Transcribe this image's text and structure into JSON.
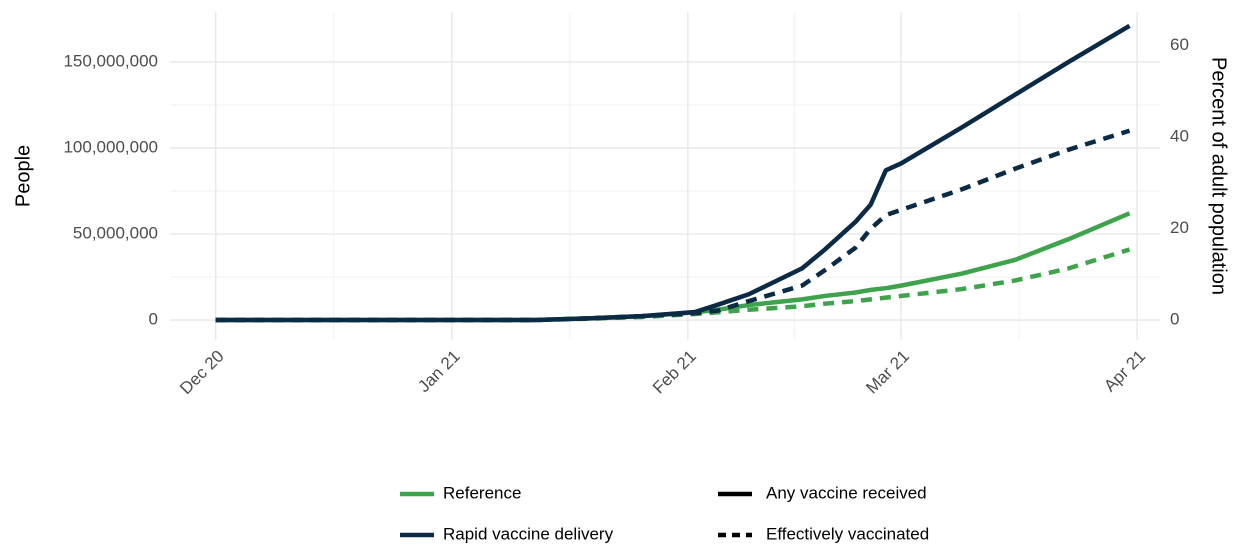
{
  "chart_data": {
    "type": "line",
    "y_label": "People",
    "y2_label": "Percent of adult population",
    "x": [
      0,
      14,
      28,
      42,
      49,
      56,
      63,
      66,
      70,
      77,
      80,
      84,
      86,
      88,
      90,
      98,
      105,
      112,
      120
    ],
    "xlim": [
      -6,
      124
    ],
    "xticks": [
      {
        "value": 0,
        "label": "Dec 20"
      },
      {
        "value": 31,
        "label": "Jan 21"
      },
      {
        "value": 62,
        "label": "Feb 21"
      },
      {
        "value": 90,
        "label": "Mar 21"
      },
      {
        "value": 121,
        "label": "Apr 21"
      }
    ],
    "ylim": [
      -11600000,
      179000000
    ],
    "yticks": [
      0,
      {
        "value": 50000000,
        "label": "50,000,000"
      },
      {
        "value": 100000000,
        "label": "100,000,000"
      },
      {
        "value": 150000000,
        "label": "150,000,000"
      }
    ],
    "y2lim": [
      -4.4,
      67.3
    ],
    "y2ticks": [
      0,
      20,
      40,
      60
    ],
    "grid": true,
    "series": [
      {
        "color": "#3fa34d",
        "dashed": false,
        "values": [
          0,
          0,
          0,
          0,
          1000000,
          2300000,
          4500000,
          6000000,
          8700000,
          12000000,
          14000000,
          16000000,
          17500000,
          18500000,
          20000000,
          27000000,
          35000000,
          47000000,
          62000000
        ]
      },
      {
        "color": "#3fa34d",
        "dashed": true,
        "values": [
          0,
          0,
          0,
          0,
          800000,
          1800000,
          3500000,
          4500000,
          6000000,
          8000000,
          9500000,
          11000000,
          12000000,
          13000000,
          14000000,
          18000000,
          23000000,
          30000000,
          41000000
        ]
      },
      {
        "color": "#0b2a45",
        "dashed": false,
        "values": [
          0,
          0,
          0,
          0,
          1000000,
          2300000,
          4700000,
          9000000,
          15000000,
          30000000,
          41000000,
          57000000,
          67000000,
          87000000,
          91000000,
          112000000,
          131000000,
          150000000,
          171000000
        ]
      },
      {
        "color": "#0b2a45",
        "dashed": true,
        "values": [
          0,
          0,
          0,
          0,
          1000000,
          2300000,
          4000000,
          5500000,
          11000000,
          20000000,
          29000000,
          42000000,
          53000000,
          61000000,
          64000000,
          76000000,
          88000000,
          99000000,
          110000000
        ]
      }
    ],
    "legend": {
      "color_entries": [
        {
          "name": "Reference",
          "color": "#3fa34d"
        },
        {
          "name": "Rapid vaccine delivery",
          "color": "#0b2a45"
        }
      ],
      "linetype_entries": [
        {
          "name": "Any vaccine received",
          "dashed": false
        },
        {
          "name": "Effectively vaccinated",
          "dashed": true
        }
      ]
    }
  }
}
